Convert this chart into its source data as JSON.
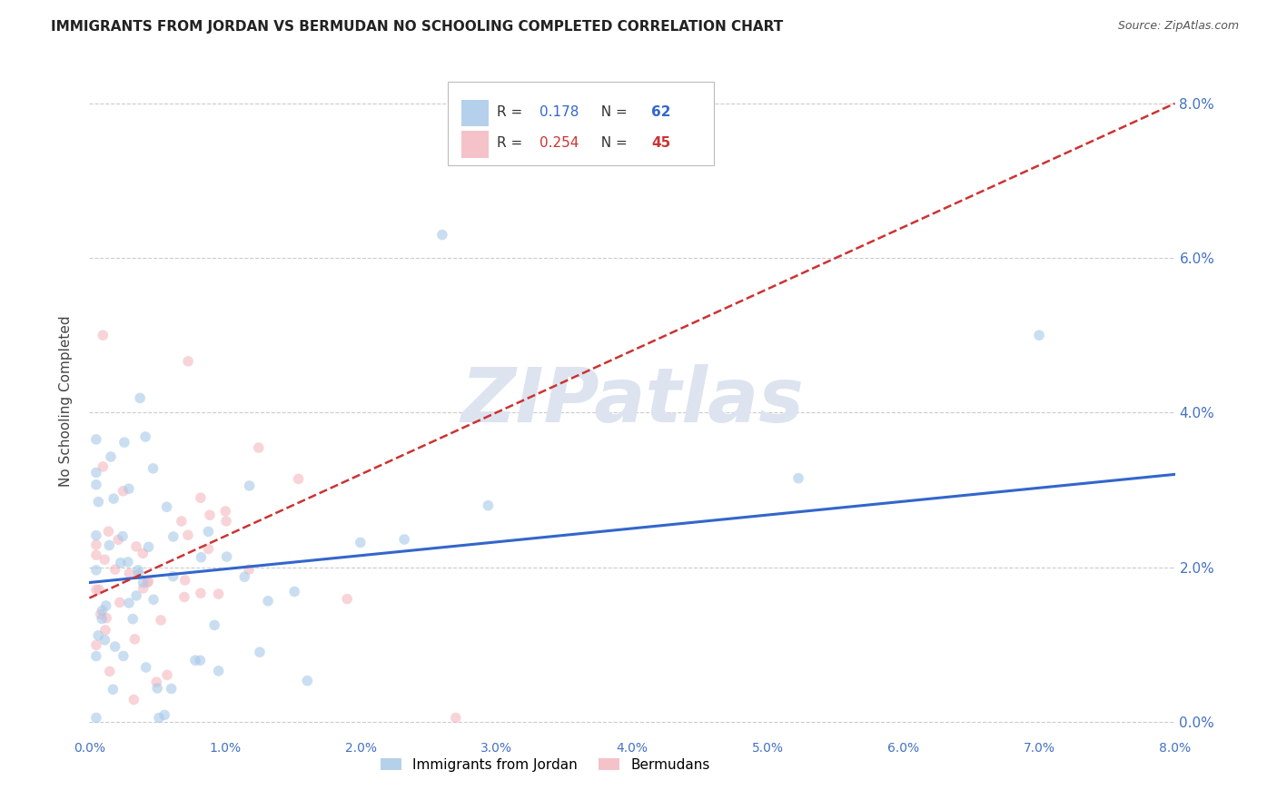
{
  "title": "IMMIGRANTS FROM JORDAN VS BERMUDAN NO SCHOOLING COMPLETED CORRELATION CHART",
  "source": "Source: ZipAtlas.com",
  "ylabel": "No Schooling Completed",
  "xmin": 0.0,
  "xmax": 0.08,
  "ymin": -0.002,
  "ymax": 0.085,
  "color_jordan": "#a8c8e8",
  "color_bermuda": "#f4b8c0",
  "trendline_jordan_color": "#3366cc",
  "trendline_bermuda_color": "#cc3333",
  "background_color": "#ffffff",
  "jordan_size": 70,
  "bermuda_size": 70,
  "jordan_alpha": 0.6,
  "bermuda_alpha": 0.6,
  "watermark": "ZIPatlas",
  "watermark_color": "#dde4f0",
  "watermark_fontsize": 60,
  "legend_jordan_color": "#a8c8e8",
  "legend_bermuda_color": "#f4b8c0",
  "r_jordan": "0.178",
  "n_jordan": "62",
  "r_bermuda": "0.254",
  "n_bermuda": "45",
  "r_jordan_color": "#3366cc",
  "n_jordan_color": "#3366cc",
  "r_bermuda_color": "#cc3333",
  "n_bermuda_color": "#cc3333"
}
